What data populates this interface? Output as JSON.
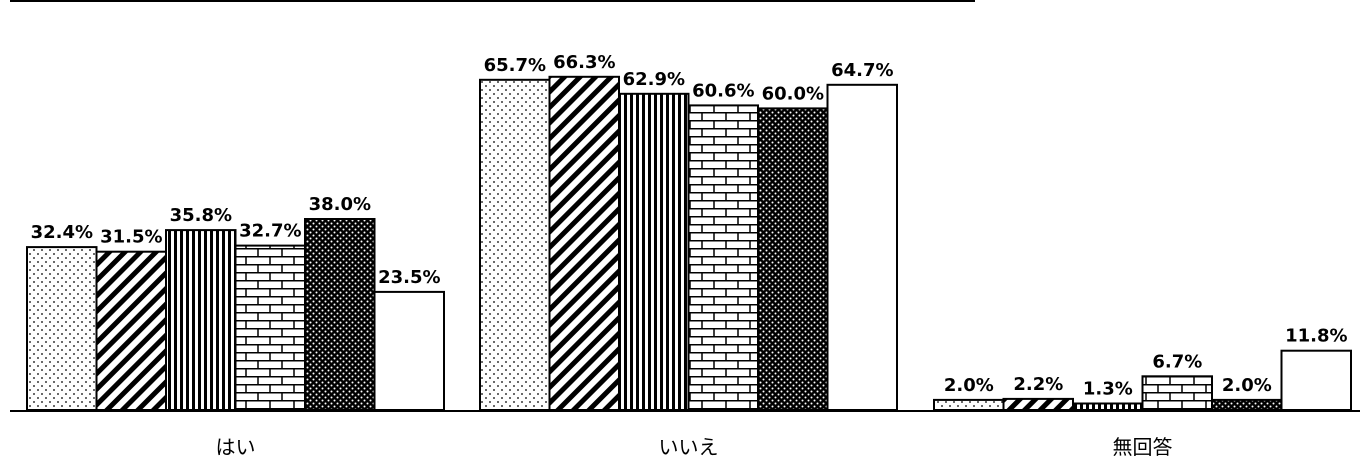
{
  "chart_data": {
    "type": "bar",
    "categories": [
      "はい",
      "いいえ",
      "無回答"
    ],
    "series": [
      {
        "values": [
          32.4,
          65.7,
          2.0
        ],
        "pattern": "dots-sparse"
      },
      {
        "values": [
          31.5,
          66.3,
          2.2
        ],
        "pattern": "diagonal-stripes"
      },
      {
        "values": [
          35.8,
          62.9,
          1.3
        ],
        "pattern": "vertical-stripes"
      },
      {
        "values": [
          32.7,
          60.6,
          6.7
        ],
        "pattern": "bricks"
      },
      {
        "values": [
          38.0,
          60.0,
          2.0
        ],
        "pattern": "dots-dense-black"
      },
      {
        "values": [
          23.5,
          64.7,
          11.8
        ],
        "pattern": "solid-white"
      }
    ],
    "value_labels": [
      [
        "32.4%",
        "65.7%",
        "2.0%"
      ],
      [
        "31.5%",
        "66.3%",
        "2.2%"
      ],
      [
        "35.8%",
        "62.9%",
        "1.3%"
      ],
      [
        "32.7%",
        "60.6%",
        "6.7%"
      ],
      [
        "38.0%",
        "60.0%",
        "2.0%"
      ],
      [
        "23.5%",
        "64.7%",
        "11.8%"
      ]
    ],
    "title": "",
    "xlabel": "",
    "ylabel": "",
    "ylim": [
      0,
      76
    ],
    "grid": false,
    "legend": "none",
    "colors": {
      "stroke": "#000000",
      "background": "#ffffff"
    }
  }
}
